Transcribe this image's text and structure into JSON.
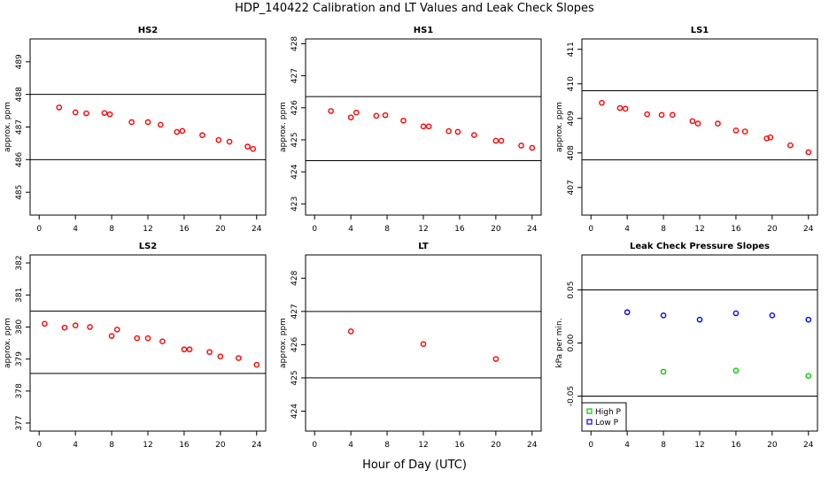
{
  "title": "HDP_140422  Calibration and LT Values and Leak Check Slopes",
  "xlabel": "Hour of Day (UTC)",
  "chart_data": [
    {
      "type": "scatter",
      "title": "HS2",
      "ylabel": "approx. ppm",
      "xlim": [
        -1,
        25
      ],
      "ylim": [
        484.3,
        489.7
      ],
      "xticks": [
        0,
        4,
        8,
        12,
        16,
        20,
        24
      ],
      "yticks": [
        485,
        486,
        487,
        488,
        489
      ],
      "hlines": [
        488,
        486
      ],
      "series": [
        {
          "marker": "circle",
          "color": "#ff0000",
          "x": [
            2.2,
            4,
            5.2,
            7.2,
            7.8,
            10.2,
            12,
            13.4,
            15.2,
            15.8,
            18,
            19.8,
            21,
            23,
            23.6
          ],
          "y": [
            487.6,
            487.45,
            487.42,
            487.43,
            487.39,
            487.15,
            487.15,
            487.07,
            486.85,
            486.88,
            486.75,
            486.6,
            486.55,
            486.4,
            486.33
          ]
        }
      ]
    },
    {
      "type": "scatter",
      "title": "HS1",
      "ylabel": "approx. ppm",
      "xlim": [
        -1,
        25
      ],
      "ylim": [
        422.65,
        428.15
      ],
      "xticks": [
        0,
        4,
        8,
        12,
        16,
        20,
        24
      ],
      "yticks": [
        423,
        424,
        425,
        426,
        427,
        428
      ],
      "hlines": [
        426.35,
        424.35
      ],
      "series": [
        {
          "marker": "circle",
          "color": "#ff0000",
          "x": [
            1.8,
            4,
            4.6,
            6.8,
            7.8,
            9.8,
            12,
            12.6,
            14.8,
            15.8,
            17.6,
            20,
            20.6,
            22.8,
            24
          ],
          "y": [
            425.9,
            425.7,
            425.85,
            425.75,
            425.77,
            425.6,
            425.42,
            425.42,
            425.27,
            425.25,
            425.15,
            424.97,
            424.97,
            424.82,
            424.75
          ]
        }
      ]
    },
    {
      "type": "scatter",
      "title": "LS1",
      "ylabel": "approx. ppm",
      "xlim": [
        -1,
        25
      ],
      "ylim": [
        406.2,
        411.3
      ],
      "xticks": [
        0,
        4,
        8,
        12,
        16,
        20,
        24
      ],
      "yticks": [
        407,
        408,
        409,
        410,
        411
      ],
      "hlines": [
        409.8,
        407.8
      ],
      "series": [
        {
          "marker": "circle",
          "color": "#ff0000",
          "x": [
            1.2,
            3.2,
            3.8,
            6.2,
            7.8,
            9,
            11.2,
            11.8,
            14,
            16,
            17,
            19.4,
            19.8,
            22,
            24
          ],
          "y": [
            409.45,
            409.3,
            409.28,
            409.12,
            409.1,
            409.1,
            408.92,
            408.85,
            408.85,
            408.65,
            408.62,
            408.42,
            408.45,
            408.22,
            408.02
          ]
        }
      ]
    },
    {
      "type": "scatter",
      "title": "LS2",
      "ylabel": "approx. ppm",
      "xlim": [
        -1,
        25
      ],
      "ylim": [
        376.75,
        382.25
      ],
      "xticks": [
        0,
        4,
        8,
        12,
        16,
        20,
        24
      ],
      "yticks": [
        377,
        378,
        379,
        380,
        381,
        382
      ],
      "hlines": [
        380.5,
        378.55
      ],
      "series": [
        {
          "marker": "circle",
          "color": "#ff0000",
          "x": [
            0.6,
            2.8,
            4,
            5.6,
            8,
            8.6,
            10.8,
            12,
            13.6,
            16,
            16.6,
            18.8,
            20,
            22,
            24
          ],
          "y": [
            380.1,
            379.98,
            380.05,
            380.0,
            379.72,
            379.92,
            379.65,
            379.65,
            379.55,
            379.3,
            379.3,
            379.22,
            379.08,
            379.03,
            378.82
          ]
        }
      ]
    },
    {
      "type": "scatter",
      "title": "LT",
      "ylabel": "approx. ppm",
      "xlim": [
        -1,
        25
      ],
      "ylim": [
        423.4,
        428.7
      ],
      "xticks": [
        0,
        4,
        8,
        12,
        16,
        20,
        24
      ],
      "yticks": [
        424,
        425,
        426,
        427,
        428
      ],
      "hlines": [
        427,
        425
      ],
      "series": [
        {
          "marker": "circle",
          "color": "#ff0000",
          "x": [
            4,
            12,
            20
          ],
          "y": [
            426.4,
            426.02,
            425.57
          ]
        }
      ]
    },
    {
      "type": "scatter",
      "title": "Leak Check Pressure Slopes",
      "ylabel": "kPa per min.",
      "xlim": [
        -1,
        25
      ],
      "ylim": [
        -0.083,
        0.083
      ],
      "xticks": [
        0,
        4,
        8,
        12,
        16,
        20,
        24
      ],
      "yticks": [
        -0.05,
        0.0,
        0.05
      ],
      "ytick_labels": [
        "-0.05",
        "0.00",
        "0.05"
      ],
      "hlines": [
        0.05,
        -0.05
      ],
      "legend": {
        "position": "bottom-left",
        "entries": [
          "High P",
          "Low P"
        ]
      },
      "series": [
        {
          "name": "High P",
          "marker": "circle",
          "color": "#00cc00",
          "x": [
            8,
            16,
            24
          ],
          "y": [
            -0.027,
            -0.026,
            -0.031
          ]
        },
        {
          "name": "Low P",
          "marker": "circle",
          "color": "#0000ff",
          "x": [
            4,
            8,
            12,
            16,
            20,
            24
          ],
          "y": [
            0.029,
            0.026,
            0.022,
            0.028,
            0.026,
            0.022
          ]
        }
      ]
    }
  ]
}
